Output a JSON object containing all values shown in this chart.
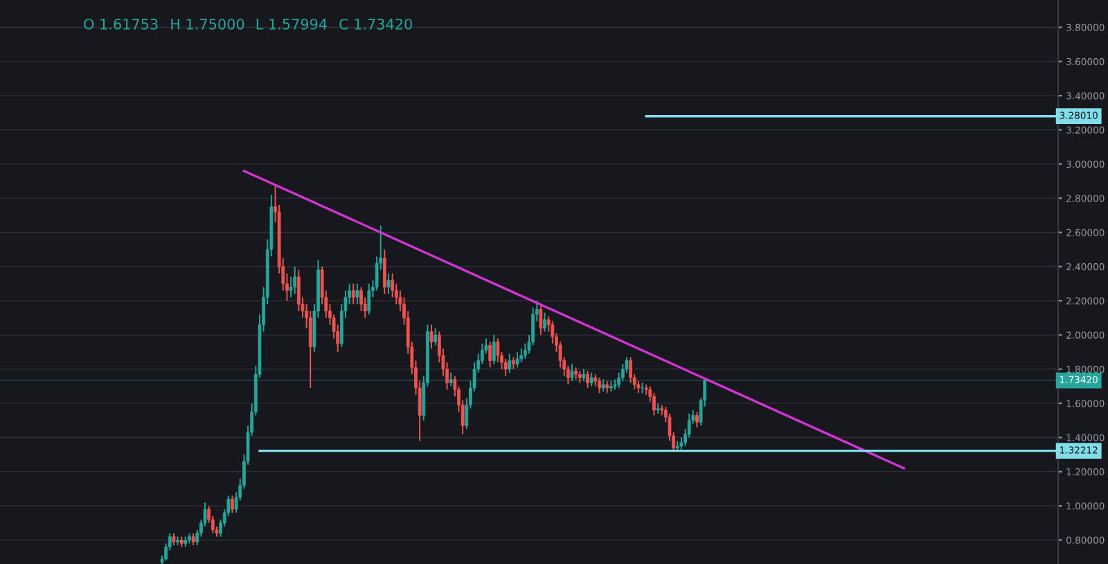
{
  "chart_data": {
    "type": "candlestick",
    "annotations": [
      "O 1.61753",
      "H 1.75000",
      "L 1.57994",
      "C 1.73420"
    ],
    "categories": [
      null,
      null,
      null,
      null,
      null,
      null,
      null,
      null,
      null,
      null,
      null,
      null,
      null,
      null,
      null,
      null,
      null,
      null,
      null,
      null,
      null,
      null,
      null,
      null,
      null,
      null,
      null,
      null,
      null,
      null,
      null,
      null,
      null,
      null,
      null,
      null,
      null,
      null,
      null,
      null,
      null,
      null,
      null,
      null,
      null,
      null,
      null,
      null,
      null,
      null,
      null,
      null,
      null,
      null,
      null,
      null,
      null,
      null,
      null,
      null,
      null,
      null,
      null,
      null,
      null,
      null,
      null,
      null,
      null,
      null,
      null,
      null,
      null,
      null,
      null,
      null,
      null,
      null,
      null,
      null,
      null,
      null,
      null,
      null,
      null,
      null,
      null,
      null,
      null,
      null,
      null,
      null,
      null,
      null,
      null,
      null,
      null,
      null,
      null,
      null,
      null,
      null,
      null,
      null,
      null,
      null,
      null,
      null,
      null,
      null,
      null,
      null,
      null,
      null,
      null,
      null,
      null,
      null,
      null,
      null,
      null,
      null,
      null,
      null,
      null,
      null,
      null,
      null,
      null,
      null,
      null,
      null,
      null,
      null,
      null,
      null,
      null,
      null,
      null,
      null,
      null,
      null,
      null,
      null,
      null,
      null,
      null,
      null,
      null,
      null,
      null,
      null,
      null,
      null,
      null,
      null,
      null,
      null,
      null,
      null,
      null,
      null,
      null,
      null,
      null,
      null,
      null,
      null,
      null,
      null,
      null,
      null,
      null,
      null,
      null,
      null,
      null,
      null,
      null,
      null,
      null,
      null,
      null,
      null,
      null,
      null,
      null,
      null,
      null,
      null,
      null,
      null,
      null,
      null,
      null,
      null,
      null,
      null,
      null,
      null,
      null,
      null,
      null,
      null,
      null,
      null,
      null,
      null,
      null,
      null,
      null,
      null,
      null,
      null,
      null,
      null,
      null,
      null,
      null,
      null,
      null,
      null,
      null,
      null,
      null,
      null,
      null,
      null,
      null,
      null,
      null,
      null,
      null,
      null,
      null,
      null,
      null,
      null,
      null,
      null,
      null,
      null,
      null,
      null,
      null,
      null,
      null,
      null,
      null,
      null,
      null,
      null,
      null,
      null,
      null,
      null,
      null,
      null,
      null,
      null,
      null,
      null,
      null,
      null,
      null,
      null,
      null,
      null,
      null,
      null,
      null
    ],
    "ohlc": [
      null,
      null,
      null,
      null,
      null,
      null,
      null,
      null,
      null,
      null,
      null,
      null,
      null,
      null,
      null,
      null,
      null,
      null,
      null,
      null,
      null,
      null,
      null,
      null,
      null,
      null,
      null,
      null,
      null,
      null,
      null,
      null,
      null,
      null,
      null,
      null,
      null,
      null,
      null,
      null,
      null,
      [
        0.67,
        0.71,
        0.66,
        0.69
      ],
      [
        0.69,
        0.78,
        0.68,
        0.76
      ],
      [
        0.76,
        0.84,
        0.74,
        0.82
      ],
      [
        0.82,
        0.84,
        0.77,
        0.79
      ],
      [
        0.79,
        0.82,
        0.77,
        0.8
      ],
      [
        0.8,
        0.82,
        0.76,
        0.78
      ],
      [
        0.78,
        0.82,
        0.76,
        0.8
      ],
      [
        0.8,
        0.84,
        0.78,
        0.82
      ],
      [
        0.82,
        0.84,
        0.77,
        0.79
      ],
      [
        0.79,
        0.86,
        0.77,
        0.84
      ],
      [
        0.84,
        0.92,
        0.82,
        0.9
      ],
      [
        0.9,
        1.02,
        0.88,
        0.98
      ],
      [
        0.98,
        1.0,
        0.9,
        0.92
      ],
      [
        0.92,
        0.94,
        0.84,
        0.86
      ],
      [
        0.86,
        0.88,
        0.82,
        0.84
      ],
      [
        0.84,
        0.92,
        0.82,
        0.9
      ],
      [
        0.9,
        0.98,
        0.88,
        0.96
      ],
      [
        0.96,
        1.06,
        0.94,
        1.04
      ],
      [
        1.04,
        1.06,
        0.96,
        0.98
      ],
      [
        0.98,
        1.08,
        0.96,
        1.05
      ],
      [
        1.05,
        1.16,
        1.03,
        1.12
      ],
      [
        1.12,
        1.3,
        1.1,
        1.26
      ],
      [
        1.26,
        1.47,
        1.24,
        1.43
      ],
      [
        1.43,
        1.6,
        1.41,
        1.55
      ],
      [
        1.55,
        1.82,
        1.53,
        1.77
      ],
      [
        1.77,
        2.12,
        1.75,
        2.06
      ],
      [
        2.06,
        2.28,
        2.02,
        2.22
      ],
      [
        2.22,
        2.56,
        2.18,
        2.5
      ],
      [
        2.5,
        2.82,
        2.46,
        2.75
      ],
      [
        2.75,
        2.87,
        2.66,
        2.72
      ],
      [
        2.72,
        2.76,
        2.36,
        2.4
      ],
      [
        2.4,
        2.45,
        2.26,
        2.3
      ],
      [
        2.3,
        2.36,
        2.2,
        2.26
      ],
      [
        2.26,
        2.34,
        2.22,
        2.28
      ],
      [
        2.28,
        2.4,
        2.24,
        2.34
      ],
      [
        2.34,
        2.38,
        2.14,
        2.18
      ],
      [
        2.18,
        2.22,
        2.1,
        2.14
      ],
      [
        2.14,
        2.18,
        2.04,
        2.1
      ],
      [
        2.1,
        2.14,
        1.69,
        1.93
      ],
      [
        1.93,
        2.18,
        1.9,
        2.14
      ],
      [
        2.14,
        2.44,
        2.1,
        2.38
      ],
      [
        2.38,
        2.4,
        2.18,
        2.22
      ],
      [
        2.22,
        2.26,
        2.1,
        2.14
      ],
      [
        2.14,
        2.18,
        2.06,
        2.1
      ],
      [
        2.1,
        2.12,
        1.98,
        2.02
      ],
      [
        2.02,
        2.06,
        1.9,
        1.95
      ],
      [
        1.95,
        2.18,
        1.93,
        2.14
      ],
      [
        2.14,
        2.26,
        2.1,
        2.22
      ],
      [
        2.22,
        2.3,
        2.18,
        2.26
      ],
      [
        2.26,
        2.3,
        2.18,
        2.22
      ],
      [
        2.22,
        2.3,
        2.18,
        2.26
      ],
      [
        2.26,
        2.28,
        2.14,
        2.18
      ],
      [
        2.18,
        2.22,
        2.1,
        2.14
      ],
      [
        2.14,
        2.3,
        2.12,
        2.26
      ],
      [
        2.26,
        2.32,
        2.22,
        2.28
      ],
      [
        2.28,
        2.46,
        2.26,
        2.42
      ],
      [
        2.42,
        2.64,
        2.38,
        2.45
      ],
      [
        2.45,
        2.5,
        2.24,
        2.28
      ],
      [
        2.28,
        2.36,
        2.24,
        2.32
      ],
      [
        2.32,
        2.36,
        2.22,
        2.26
      ],
      [
        2.26,
        2.3,
        2.18,
        2.22
      ],
      [
        2.22,
        2.26,
        2.14,
        2.18
      ],
      [
        2.18,
        2.22,
        2.06,
        2.1
      ],
      [
        2.1,
        2.14,
        1.89,
        1.93
      ],
      [
        1.93,
        1.96,
        1.77,
        1.81
      ],
      [
        1.81,
        1.85,
        1.65,
        1.69
      ],
      [
        1.69,
        1.73,
        1.38,
        1.53
      ],
      [
        1.53,
        1.76,
        1.5,
        1.72
      ],
      [
        1.72,
        2.06,
        1.7,
        2.02
      ],
      [
        2.02,
        2.06,
        1.92,
        1.96
      ],
      [
        1.96,
        2.04,
        1.94,
        2.0
      ],
      [
        2.0,
        2.02,
        1.84,
        1.88
      ],
      [
        1.88,
        1.92,
        1.76,
        1.8
      ],
      [
        1.8,
        1.84,
        1.68,
        1.72
      ],
      [
        1.72,
        1.78,
        1.7,
        1.74
      ],
      [
        1.74,
        1.76,
        1.64,
        1.68
      ],
      [
        1.68,
        1.7,
        1.55,
        1.59
      ],
      [
        1.59,
        1.62,
        1.42,
        1.47
      ],
      [
        1.47,
        1.63,
        1.45,
        1.59
      ],
      [
        1.59,
        1.73,
        1.57,
        1.69
      ],
      [
        1.69,
        1.84,
        1.67,
        1.8
      ],
      [
        1.8,
        1.89,
        1.78,
        1.85
      ],
      [
        1.85,
        1.95,
        1.83,
        1.91
      ],
      [
        1.91,
        1.98,
        1.89,
        1.94
      ],
      [
        1.94,
        1.96,
        1.81,
        1.85
      ],
      [
        1.85,
        2.0,
        1.83,
        1.96
      ],
      [
        1.96,
        1.98,
        1.84,
        1.88
      ],
      [
        1.88,
        1.9,
        1.8,
        1.84
      ],
      [
        1.84,
        1.86,
        1.76,
        1.8
      ],
      [
        1.8,
        1.89,
        1.78,
        1.85
      ],
      [
        1.85,
        1.87,
        1.8,
        1.83
      ],
      [
        1.83,
        1.9,
        1.81,
        1.86
      ],
      [
        1.86,
        1.92,
        1.84,
        1.88
      ],
      [
        1.88,
        1.95,
        1.86,
        1.91
      ],
      [
        1.91,
        2.0,
        1.89,
        1.96
      ],
      [
        1.96,
        2.16,
        1.94,
        2.12
      ],
      [
        2.12,
        2.2,
        2.08,
        2.15
      ],
      [
        2.15,
        2.17,
        2.0,
        2.04
      ],
      [
        2.04,
        2.13,
        2.02,
        2.09
      ],
      [
        2.09,
        2.11,
        2.02,
        2.06
      ],
      [
        2.06,
        2.08,
        1.95,
        1.99
      ],
      [
        1.99,
        2.01,
        1.9,
        1.94
      ],
      [
        1.94,
        1.96,
        1.81,
        1.85
      ],
      [
        1.85,
        1.87,
        1.76,
        1.8
      ],
      [
        1.8,
        1.82,
        1.71,
        1.75
      ],
      [
        1.75,
        1.83,
        1.73,
        1.79
      ],
      [
        1.79,
        1.81,
        1.74,
        1.77
      ],
      [
        1.77,
        1.79,
        1.72,
        1.75
      ],
      [
        1.75,
        1.8,
        1.73,
        1.77
      ],
      [
        1.77,
        1.79,
        1.69,
        1.72
      ],
      [
        1.72,
        1.78,
        1.7,
        1.75
      ],
      [
        1.75,
        1.77,
        1.7,
        1.73
      ],
      [
        1.73,
        1.75,
        1.66,
        1.69
      ],
      [
        1.69,
        1.74,
        1.67,
        1.71
      ],
      [
        1.71,
        1.73,
        1.66,
        1.69
      ],
      [
        1.69,
        1.73,
        1.67,
        1.7
      ],
      [
        1.7,
        1.74,
        1.68,
        1.71
      ],
      [
        1.71,
        1.78,
        1.69,
        1.75
      ],
      [
        1.75,
        1.83,
        1.73,
        1.8
      ],
      [
        1.8,
        1.87,
        1.78,
        1.85
      ],
      [
        1.85,
        1.87,
        1.72,
        1.75
      ],
      [
        1.75,
        1.77,
        1.68,
        1.71
      ],
      [
        1.71,
        1.73,
        1.66,
        1.69
      ],
      [
        1.69,
        1.72,
        1.66,
        1.69
      ],
      [
        1.69,
        1.71,
        1.65,
        1.68
      ],
      [
        1.68,
        1.7,
        1.61,
        1.64
      ],
      [
        1.64,
        1.66,
        1.53,
        1.56
      ],
      [
        1.56,
        1.6,
        1.54,
        1.57
      ],
      [
        1.57,
        1.59,
        1.53,
        1.56
      ],
      [
        1.56,
        1.58,
        1.49,
        1.52
      ],
      [
        1.52,
        1.54,
        1.38,
        1.41
      ],
      [
        1.41,
        1.43,
        1.32,
        1.34
      ],
      [
        1.34,
        1.38,
        1.32,
        1.35
      ],
      [
        1.35,
        1.4,
        1.33,
        1.37
      ],
      [
        1.37,
        1.45,
        1.35,
        1.42
      ],
      [
        1.42,
        1.54,
        1.4,
        1.5
      ],
      [
        1.5,
        1.56,
        1.48,
        1.53
      ],
      [
        1.53,
        1.55,
        1.46,
        1.49
      ],
      [
        1.49,
        1.63,
        1.47,
        1.61753
      ],
      [
        1.61753,
        1.75,
        1.57994,
        1.7342
      ],
      null,
      null,
      null,
      null,
      null,
      null,
      null,
      null,
      null,
      null,
      null,
      null,
      null,
      null,
      null,
      null,
      null,
      null,
      null,
      null,
      null,
      null,
      null,
      null,
      null,
      null,
      null,
      null,
      null,
      null,
      null,
      null,
      null,
      null,
      null,
      null,
      null,
      null,
      null,
      null,
      null,
      null,
      null,
      null,
      null,
      null,
      null,
      null,
      null,
      null,
      null,
      null,
      null,
      null,
      null,
      null,
      null,
      null,
      null,
      null,
      null,
      null,
      null,
      null,
      null,
      null,
      null,
      null,
      null,
      null,
      null,
      null,
      null,
      null,
      null,
      null,
      null,
      null,
      null,
      null,
      null,
      null,
      null,
      null,
      null,
      null,
      null,
      null,
      null,
      null
    ],
    "series": [
      {
        "type": "line",
        "color": "#d633d6",
        "values": [
          null,
          null,
          null,
          null,
          null,
          null,
          null,
          null,
          null,
          null,
          null,
          null,
          null,
          null,
          null,
          null,
          null,
          null,
          null,
          null,
          null,
          null,
          null,
          null,
          null,
          null,
          null,
          null,
          null,
          null,
          null,
          null,
          null,
          null,
          null,
          null,
          null,
          null,
          null,
          null,
          null,
          null,
          null,
          null,
          null,
          null,
          null,
          null,
          null,
          null,
          null,
          null,
          null,
          null,
          null,
          null,
          null,
          null,
          null,
          null,
          null,
          null,
          2.96,
          null,
          null,
          null,
          null,
          null,
          null,
          null,
          null,
          null,
          null,
          null,
          null,
          null,
          null,
          null,
          null,
          null,
          null,
          null,
          null,
          null,
          null,
          null,
          null,
          null,
          null,
          null,
          null,
          null,
          null,
          null,
          null,
          null,
          null,
          null,
          null,
          null,
          null,
          null,
          null,
          null,
          null,
          null,
          null,
          null,
          null,
          null,
          null,
          null,
          null,
          null,
          null,
          null,
          null,
          null,
          null,
          null,
          null,
          null,
          null,
          null,
          null,
          null,
          null,
          null,
          null,
          null,
          null,
          null,
          null,
          null,
          null,
          null,
          null,
          null,
          null,
          null,
          null,
          null,
          null,
          null,
          null,
          null,
          null,
          null,
          null,
          null,
          null,
          null,
          null,
          null,
          null,
          null,
          null,
          null,
          null,
          null,
          null,
          null,
          null,
          null,
          null,
          null,
          null,
          null,
          null,
          null,
          null,
          null,
          null,
          null,
          null,
          null,
          null,
          null,
          null,
          null,
          null,
          null,
          null,
          null,
          null,
          null,
          null,
          null,
          null,
          null,
          null,
          null,
          null,
          null,
          null,
          null,
          null,
          null,
          null,
          null,
          null,
          null,
          null,
          null,
          null,
          null,
          null,
          null,
          null,
          null,
          null,
          null,
          null,
          null,
          null,
          null,
          null,
          null,
          null,
          null,
          null,
          null,
          null,
          null,
          null,
          null,
          null,
          null,
          null,
          null,
          null,
          1.22,
          null,
          null,
          null,
          null,
          null,
          null,
          null,
          null,
          null,
          null,
          null,
          null,
          null,
          null,
          null,
          null,
          null,
          null,
          null,
          null,
          null,
          null,
          null,
          null,
          null,
          null,
          null,
          null,
          null,
          null,
          null,
          null,
          null,
          null,
          null,
          null,
          null,
          null,
          null
        ]
      },
      {
        "type": "line",
        "color": "#80deea",
        "values": [
          null,
          null,
          null,
          null,
          null,
          null,
          null,
          null,
          null,
          null,
          null,
          null,
          null,
          null,
          null,
          null,
          null,
          null,
          null,
          null,
          null,
          null,
          null,
          null,
          null,
          null,
          null,
          null,
          null,
          null,
          null,
          null,
          null,
          null,
          null,
          null,
          null,
          null,
          null,
          null,
          null,
          null,
          null,
          null,
          null,
          null,
          null,
          null,
          null,
          null,
          null,
          null,
          null,
          null,
          null,
          null,
          null,
          null,
          null,
          null,
          null,
          null,
          null,
          null,
          null,
          null,
          1.32212,
          null,
          null,
          null,
          null,
          null,
          null,
          null,
          null,
          null,
          null,
          null,
          null,
          null,
          null,
          null,
          null,
          null,
          null,
          null,
          null,
          null,
          null,
          null,
          null,
          null,
          null,
          null,
          null,
          null,
          null,
          null,
          null,
          null,
          null,
          null,
          null,
          null,
          null,
          null,
          null,
          null,
          null,
          null,
          null,
          null,
          null,
          null,
          null,
          null,
          null,
          null,
          null,
          null,
          null,
          null,
          null,
          null,
          null,
          null,
          null,
          null,
          null,
          null,
          null,
          null,
          null,
          null,
          null,
          null,
          null,
          null,
          null,
          null,
          null,
          null,
          null,
          null,
          null,
          null,
          null,
          null,
          null,
          null,
          null,
          null,
          null,
          null,
          null,
          null,
          null,
          null,
          null,
          null,
          null,
          null,
          null,
          null,
          null,
          null,
          null,
          null,
          null,
          null,
          null,
          null,
          null,
          null,
          null,
          null,
          null,
          null,
          null,
          null,
          null,
          null,
          null,
          null,
          null,
          null,
          null,
          null,
          null,
          null,
          null,
          null,
          null,
          null,
          null,
          null,
          null,
          null,
          null,
          null,
          null,
          null,
          null,
          null,
          null,
          null,
          null,
          null,
          null,
          null,
          null,
          null,
          null,
          null,
          null,
          null,
          null,
          null,
          null,
          null,
          null,
          null,
          null,
          null,
          null,
          null,
          null,
          null,
          null,
          null,
          null,
          null,
          null,
          null,
          null,
          null,
          null,
          null,
          null,
          null,
          null,
          null,
          null,
          null,
          null,
          null,
          null,
          null,
          null,
          null,
          null,
          null,
          null,
          null,
          null,
          null,
          null,
          null,
          null,
          null,
          null,
          null,
          null,
          null,
          null,
          null,
          null,
          null,
          null,
          null,
          1.32212
        ],
        "value_labels": [
          null,
          null,
          null,
          null,
          null,
          null,
          null,
          null,
          null,
          null,
          null,
          null,
          null,
          null,
          null,
          null,
          null,
          null,
          null,
          null,
          null,
          null,
          null,
          null,
          null,
          null,
          null,
          null,
          null,
          null,
          null,
          null,
          null,
          null,
          null,
          null,
          null,
          null,
          null,
          null,
          null,
          null,
          null,
          null,
          null,
          null,
          null,
          null,
          null,
          null,
          null,
          null,
          null,
          null,
          null,
          null,
          null,
          null,
          null,
          null,
          null,
          null,
          null,
          null,
          null,
          null,
          null,
          null,
          null,
          null,
          null,
          null,
          null,
          null,
          null,
          null,
          null,
          null,
          null,
          null,
          null,
          null,
          null,
          null,
          null,
          null,
          null,
          null,
          null,
          null,
          null,
          null,
          null,
          null,
          null,
          null,
          null,
          null,
          null,
          null,
          null,
          null,
          null,
          null,
          null,
          null,
          null,
          null,
          null,
          null,
          null,
          null,
          null,
          null,
          null,
          null,
          null,
          null,
          null,
          null,
          null,
          null,
          null,
          null,
          null,
          null,
          null,
          null,
          null,
          null,
          null,
          null,
          null,
          null,
          null,
          null,
          null,
          null,
          null,
          null,
          null,
          null,
          null,
          null,
          null,
          null,
          null,
          null,
          null,
          null,
          null,
          null,
          null,
          null,
          null,
          null,
          null,
          null,
          null,
          null,
          null,
          null,
          null,
          null,
          null,
          null,
          null,
          null,
          null,
          null,
          null,
          null,
          null,
          null,
          null,
          null,
          null,
          null,
          null,
          null,
          null,
          null,
          null,
          null,
          null,
          null,
          null,
          null,
          null,
          null,
          null,
          null,
          null,
          null,
          null,
          null,
          null,
          null,
          null,
          null,
          null,
          null,
          null,
          null,
          null,
          null,
          null,
          null,
          null,
          null,
          null,
          null,
          null,
          null,
          null,
          null,
          null,
          null,
          null,
          null,
          null,
          null,
          null,
          null,
          null,
          null,
          null,
          null,
          null,
          null,
          null,
          null,
          null,
          null,
          null,
          null,
          null,
          null,
          null,
          null,
          null,
          null,
          null,
          null,
          null,
          null,
          null,
          null,
          null,
          null,
          null,
          null,
          null,
          null,
          null,
          null,
          null,
          null,
          null,
          null,
          null,
          null,
          null,
          null,
          null,
          null,
          null,
          null,
          null,
          null,
          "1.32212"
        ]
      },
      {
        "type": "line",
        "color": "#80deea",
        "values": [
          null,
          null,
          null,
          null,
          null,
          null,
          null,
          null,
          null,
          null,
          null,
          null,
          null,
          null,
          null,
          null,
          null,
          null,
          null,
          null,
          null,
          null,
          null,
          null,
          null,
          null,
          null,
          null,
          null,
          null,
          null,
          null,
          null,
          null,
          null,
          null,
          null,
          null,
          null,
          null,
          null,
          null,
          null,
          null,
          null,
          null,
          null,
          null,
          null,
          null,
          null,
          null,
          null,
          null,
          null,
          null,
          null,
          null,
          null,
          null,
          null,
          null,
          null,
          null,
          null,
          null,
          null,
          null,
          null,
          null,
          null,
          null,
          null,
          null,
          null,
          null,
          null,
          null,
          null,
          null,
          null,
          null,
          null,
          null,
          null,
          null,
          null,
          null,
          null,
          null,
          null,
          null,
          null,
          null,
          null,
          null,
          null,
          null,
          null,
          null,
          null,
          null,
          null,
          null,
          null,
          null,
          null,
          null,
          null,
          null,
          null,
          null,
          null,
          null,
          null,
          null,
          null,
          null,
          null,
          null,
          null,
          null,
          null,
          null,
          null,
          null,
          null,
          null,
          null,
          null,
          null,
          null,
          null,
          null,
          null,
          null,
          null,
          null,
          null,
          null,
          null,
          null,
          null,
          null,
          null,
          null,
          null,
          null,
          null,
          null,
          null,
          null,
          null,
          null,
          null,
          null,
          null,
          null,
          null,
          null,
          null,
          null,
          null,
          null,
          null,
          3.2801,
          null,
          null,
          null,
          null,
          null,
          null,
          null,
          null,
          null,
          null,
          null,
          null,
          null,
          null,
          null,
          null,
          null,
          null,
          null,
          null,
          null,
          null,
          null,
          null,
          null,
          null,
          null,
          null,
          null,
          null,
          null,
          null,
          null,
          null,
          null,
          null,
          null,
          null,
          null,
          null,
          null,
          null,
          null,
          null,
          null,
          null,
          null,
          null,
          null,
          null,
          null,
          null,
          null,
          null,
          null,
          null,
          null,
          null,
          null,
          null,
          null,
          null,
          null,
          null,
          null,
          null,
          null,
          null,
          null,
          null,
          null,
          null,
          null,
          null,
          null,
          null,
          null,
          null,
          null,
          null,
          null,
          null,
          null,
          null,
          null,
          null,
          null,
          null,
          null,
          null,
          null,
          null,
          null,
          null,
          null,
          null,
          null,
          null,
          null,
          null,
          null,
          null,
          null,
          null,
          3.2801
        ],
        "value_labels": [
          null,
          null,
          null,
          null,
          null,
          null,
          null,
          null,
          null,
          null,
          null,
          null,
          null,
          null,
          null,
          null,
          null,
          null,
          null,
          null,
          null,
          null,
          null,
          null,
          null,
          null,
          null,
          null,
          null,
          null,
          null,
          null,
          null,
          null,
          null,
          null,
          null,
          null,
          null,
          null,
          null,
          null,
          null,
          null,
          null,
          null,
          null,
          null,
          null,
          null,
          null,
          null,
          null,
          null,
          null,
          null,
          null,
          null,
          null,
          null,
          null,
          null,
          null,
          null,
          null,
          null,
          null,
          null,
          null,
          null,
          null,
          null,
          null,
          null,
          null,
          null,
          null,
          null,
          null,
          null,
          null,
          null,
          null,
          null,
          null,
          null,
          null,
          null,
          null,
          null,
          null,
          null,
          null,
          null,
          null,
          null,
          null,
          null,
          null,
          null,
          null,
          null,
          null,
          null,
          null,
          null,
          null,
          null,
          null,
          null,
          null,
          null,
          null,
          null,
          null,
          null,
          null,
          null,
          null,
          null,
          null,
          null,
          null,
          null,
          null,
          null,
          null,
          null,
          null,
          null,
          null,
          null,
          null,
          null,
          null,
          null,
          null,
          null,
          null,
          null,
          null,
          null,
          null,
          null,
          null,
          null,
          null,
          null,
          null,
          null,
          null,
          null,
          null,
          null,
          null,
          null,
          null,
          null,
          null,
          null,
          null,
          null,
          null,
          null,
          null,
          null,
          null,
          null,
          null,
          null,
          null,
          null,
          null,
          null,
          null,
          null,
          null,
          null,
          null,
          null,
          null,
          null,
          null,
          null,
          null,
          null,
          null,
          null,
          null,
          null,
          null,
          null,
          null,
          null,
          null,
          null,
          null,
          null,
          null,
          null,
          null,
          null,
          null,
          null,
          null,
          null,
          null,
          null,
          null,
          null,
          null,
          null,
          null,
          null,
          null,
          null,
          null,
          null,
          null,
          null,
          null,
          null,
          null,
          null,
          null,
          null,
          null,
          null,
          null,
          null,
          null,
          null,
          null,
          null,
          null,
          null,
          null,
          null,
          null,
          null,
          null,
          null,
          null,
          null,
          null,
          null,
          null,
          null,
          null,
          null,
          null,
          null,
          null,
          null,
          null,
          null,
          null,
          null,
          null,
          null,
          null,
          null,
          null,
          null,
          null,
          null,
          null,
          null,
          null,
          null,
          "3.28010"
        ]
      }
    ],
    "ref_lines": [
      {
        "axis": "y",
        "value": 1.7342,
        "label": "1.73420",
        "color": "#26a69a"
      }
    ],
    "ylim": [
      0.66,
      3.96
    ],
    "yticks": [
      {
        "value": 0.8,
        "label": "0.80000"
      },
      {
        "value": 1.0,
        "label": "1.00000"
      },
      {
        "value": 1.2,
        "label": "1.20000"
      },
      {
        "value": 1.4,
        "label": "1.40000"
      },
      {
        "value": 1.6,
        "label": "1.60000"
      },
      {
        "value": 1.8,
        "label": "1.80000"
      },
      {
        "value": 2.0,
        "label": "2.00000"
      },
      {
        "value": 2.2,
        "label": "2.20000"
      },
      {
        "value": 2.4,
        "label": "2.40000"
      },
      {
        "value": 2.6,
        "label": "2.60000"
      },
      {
        "value": 2.8,
        "label": "2.80000"
      },
      {
        "value": 3.0,
        "label": "3.00000"
      },
      {
        "value": 3.2,
        "label": "3.20000"
      },
      {
        "value": 3.4,
        "label": "3.40000"
      },
      {
        "value": 3.6,
        "label": "3.60000"
      },
      {
        "value": 3.8,
        "label": "3.80000"
      }
    ],
    "tick_labels": "y",
    "grid": "y"
  }
}
